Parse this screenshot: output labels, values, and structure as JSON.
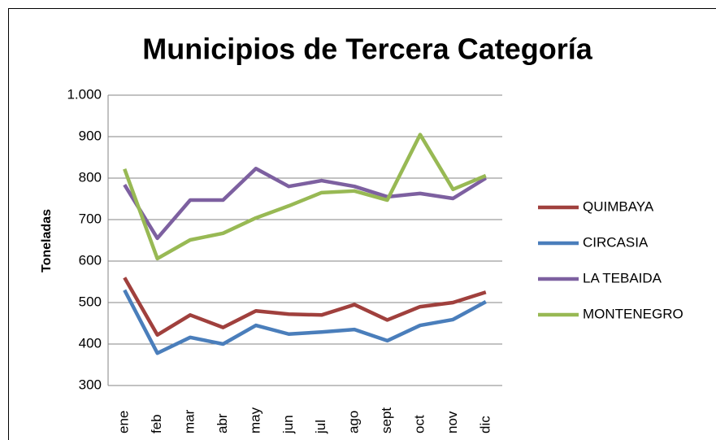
{
  "chart_data": {
    "type": "line",
    "title": "Municipios de Tercera Categoría",
    "y_label": "Toneladas",
    "categories": [
      "ene",
      "feb",
      "mar",
      "abr",
      "may",
      "jun",
      "jul",
      "ago",
      "sept",
      "oct",
      "nov",
      "dic"
    ],
    "series": [
      {
        "name": "QUIMBAYA",
        "color": "#a0403d",
        "values": [
          560,
          422,
          470,
          440,
          480,
          472,
          470,
          495,
          458,
          490,
          500,
          525
        ]
      },
      {
        "name": "CIRCASIA",
        "color": "#4a7ebb",
        "values": [
          530,
          378,
          416,
          400,
          445,
          424,
          429,
          435,
          408,
          445,
          459,
          502
        ]
      },
      {
        "name": "LA TEBAIDA",
        "color": "#7d60a0",
        "values": [
          784,
          655,
          747,
          747,
          823,
          780,
          794,
          780,
          755,
          763,
          751,
          800
        ]
      },
      {
        "name": "MONTENEGRO",
        "color": "#98b954",
        "values": [
          822,
          606,
          651,
          667,
          704,
          733,
          765,
          769,
          747,
          905,
          773,
          806
        ]
      }
    ],
    "ylim": [
      300,
      1000
    ],
    "yticks": [
      300,
      400,
      500,
      600,
      700,
      800,
      900,
      {
        "value": 1000,
        "label": "1.000"
      }
    ],
    "grid": true,
    "legend": "right"
  }
}
